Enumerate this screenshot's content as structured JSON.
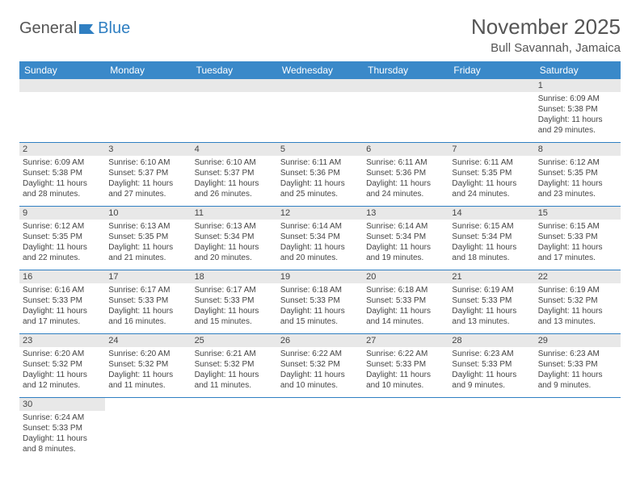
{
  "logo": {
    "text1": "General",
    "text2": "Blue"
  },
  "title": "November 2025",
  "location": "Bull Savannah, Jamaica",
  "colors": {
    "header_bg": "#3a89c9",
    "border": "#2f7fc2",
    "daynum_bg": "#e8e8e8",
    "text": "#444444",
    "title_text": "#555555"
  },
  "weekdays": [
    "Sunday",
    "Monday",
    "Tuesday",
    "Wednesday",
    "Thursday",
    "Friday",
    "Saturday"
  ],
  "weeks": [
    [
      null,
      null,
      null,
      null,
      null,
      null,
      {
        "n": "1",
        "sr": "Sunrise: 6:09 AM",
        "ss": "Sunset: 5:38 PM",
        "dl": "Daylight: 11 hours and 29 minutes."
      }
    ],
    [
      {
        "n": "2",
        "sr": "Sunrise: 6:09 AM",
        "ss": "Sunset: 5:38 PM",
        "dl": "Daylight: 11 hours and 28 minutes."
      },
      {
        "n": "3",
        "sr": "Sunrise: 6:10 AM",
        "ss": "Sunset: 5:37 PM",
        "dl": "Daylight: 11 hours and 27 minutes."
      },
      {
        "n": "4",
        "sr": "Sunrise: 6:10 AM",
        "ss": "Sunset: 5:37 PM",
        "dl": "Daylight: 11 hours and 26 minutes."
      },
      {
        "n": "5",
        "sr": "Sunrise: 6:11 AM",
        "ss": "Sunset: 5:36 PM",
        "dl": "Daylight: 11 hours and 25 minutes."
      },
      {
        "n": "6",
        "sr": "Sunrise: 6:11 AM",
        "ss": "Sunset: 5:36 PM",
        "dl": "Daylight: 11 hours and 24 minutes."
      },
      {
        "n": "7",
        "sr": "Sunrise: 6:11 AM",
        "ss": "Sunset: 5:35 PM",
        "dl": "Daylight: 11 hours and 24 minutes."
      },
      {
        "n": "8",
        "sr": "Sunrise: 6:12 AM",
        "ss": "Sunset: 5:35 PM",
        "dl": "Daylight: 11 hours and 23 minutes."
      }
    ],
    [
      {
        "n": "9",
        "sr": "Sunrise: 6:12 AM",
        "ss": "Sunset: 5:35 PM",
        "dl": "Daylight: 11 hours and 22 minutes."
      },
      {
        "n": "10",
        "sr": "Sunrise: 6:13 AM",
        "ss": "Sunset: 5:35 PM",
        "dl": "Daylight: 11 hours and 21 minutes."
      },
      {
        "n": "11",
        "sr": "Sunrise: 6:13 AM",
        "ss": "Sunset: 5:34 PM",
        "dl": "Daylight: 11 hours and 20 minutes."
      },
      {
        "n": "12",
        "sr": "Sunrise: 6:14 AM",
        "ss": "Sunset: 5:34 PM",
        "dl": "Daylight: 11 hours and 20 minutes."
      },
      {
        "n": "13",
        "sr": "Sunrise: 6:14 AM",
        "ss": "Sunset: 5:34 PM",
        "dl": "Daylight: 11 hours and 19 minutes."
      },
      {
        "n": "14",
        "sr": "Sunrise: 6:15 AM",
        "ss": "Sunset: 5:34 PM",
        "dl": "Daylight: 11 hours and 18 minutes."
      },
      {
        "n": "15",
        "sr": "Sunrise: 6:15 AM",
        "ss": "Sunset: 5:33 PM",
        "dl": "Daylight: 11 hours and 17 minutes."
      }
    ],
    [
      {
        "n": "16",
        "sr": "Sunrise: 6:16 AM",
        "ss": "Sunset: 5:33 PM",
        "dl": "Daylight: 11 hours and 17 minutes."
      },
      {
        "n": "17",
        "sr": "Sunrise: 6:17 AM",
        "ss": "Sunset: 5:33 PM",
        "dl": "Daylight: 11 hours and 16 minutes."
      },
      {
        "n": "18",
        "sr": "Sunrise: 6:17 AM",
        "ss": "Sunset: 5:33 PM",
        "dl": "Daylight: 11 hours and 15 minutes."
      },
      {
        "n": "19",
        "sr": "Sunrise: 6:18 AM",
        "ss": "Sunset: 5:33 PM",
        "dl": "Daylight: 11 hours and 15 minutes."
      },
      {
        "n": "20",
        "sr": "Sunrise: 6:18 AM",
        "ss": "Sunset: 5:33 PM",
        "dl": "Daylight: 11 hours and 14 minutes."
      },
      {
        "n": "21",
        "sr": "Sunrise: 6:19 AM",
        "ss": "Sunset: 5:33 PM",
        "dl": "Daylight: 11 hours and 13 minutes."
      },
      {
        "n": "22",
        "sr": "Sunrise: 6:19 AM",
        "ss": "Sunset: 5:32 PM",
        "dl": "Daylight: 11 hours and 13 minutes."
      }
    ],
    [
      {
        "n": "23",
        "sr": "Sunrise: 6:20 AM",
        "ss": "Sunset: 5:32 PM",
        "dl": "Daylight: 11 hours and 12 minutes."
      },
      {
        "n": "24",
        "sr": "Sunrise: 6:20 AM",
        "ss": "Sunset: 5:32 PM",
        "dl": "Daylight: 11 hours and 11 minutes."
      },
      {
        "n": "25",
        "sr": "Sunrise: 6:21 AM",
        "ss": "Sunset: 5:32 PM",
        "dl": "Daylight: 11 hours and 11 minutes."
      },
      {
        "n": "26",
        "sr": "Sunrise: 6:22 AM",
        "ss": "Sunset: 5:32 PM",
        "dl": "Daylight: 11 hours and 10 minutes."
      },
      {
        "n": "27",
        "sr": "Sunrise: 6:22 AM",
        "ss": "Sunset: 5:33 PM",
        "dl": "Daylight: 11 hours and 10 minutes."
      },
      {
        "n": "28",
        "sr": "Sunrise: 6:23 AM",
        "ss": "Sunset: 5:33 PM",
        "dl": "Daylight: 11 hours and 9 minutes."
      },
      {
        "n": "29",
        "sr": "Sunrise: 6:23 AM",
        "ss": "Sunset: 5:33 PM",
        "dl": "Daylight: 11 hours and 9 minutes."
      }
    ],
    [
      {
        "n": "30",
        "sr": "Sunrise: 6:24 AM",
        "ss": "Sunset: 5:33 PM",
        "dl": "Daylight: 11 hours and 8 minutes."
      },
      null,
      null,
      null,
      null,
      null,
      null
    ]
  ]
}
